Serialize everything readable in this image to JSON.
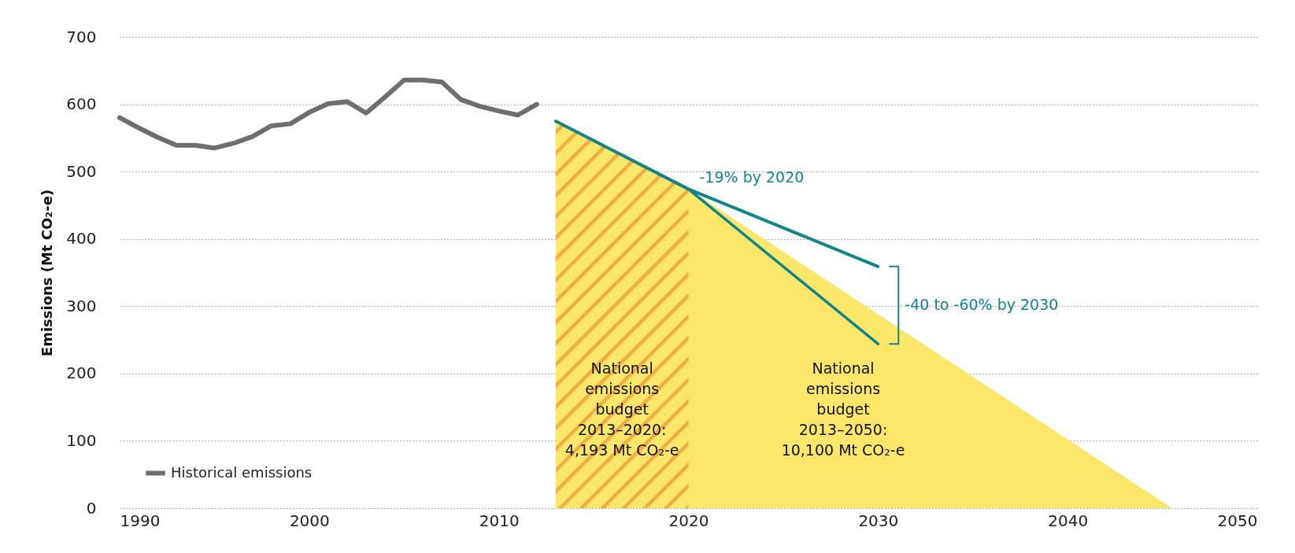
{
  "chart_data": {
    "type": "line",
    "ylabel": "Emissions (Mt CO₂-e)",
    "xlim": [
      1990,
      2050
    ],
    "xticks": [
      1990,
      2000,
      2010,
      2020,
      2030,
      2040,
      2050
    ],
    "ylim": [
      0,
      700
    ],
    "yticks": [
      0,
      100,
      200,
      300,
      400,
      500,
      600,
      700
    ],
    "grid": "y",
    "legend": "bottom left",
    "series": [
      {
        "type": "area",
        "color": "#fde76b",
        "x": [
          2013,
          2020,
          2045.5
        ],
        "values": [
          575,
          474,
          0
        ]
      },
      {
        "type": "area",
        "color": "#f0ad44",
        "x": [
          2013,
          2020
        ],
        "values": [
          575,
          474
        ]
      },
      {
        "name": "Historical emissions",
        "color": "#6d6e71",
        "x": [
          1990,
          1991,
          1992,
          1993,
          1994,
          1995,
          1996,
          1997,
          1998,
          1999,
          2000,
          2001,
          2002,
          2003,
          2004,
          2005,
          2006,
          2007,
          2008,
          2009,
          2010,
          2011,
          2012
        ],
        "values": [
          580,
          565,
          551,
          539,
          539,
          535,
          542,
          552,
          568,
          571,
          588,
          601,
          604,
          587,
          611,
          636,
          636,
          633,
          607,
          597,
          590,
          584,
          600
        ]
      },
      {
        "type": "line",
        "color": "#138586",
        "x": [
          2013,
          2020,
          2030
        ],
        "values": [
          575,
          474,
          359
        ]
      },
      {
        "type": "line",
        "color": "#138586",
        "x": [
          2020,
          2030
        ],
        "values": [
          474,
          244
        ]
      }
    ],
    "annotations": [
      {
        "text": "-19% by 2020",
        "x": 2020,
        "y": 474
      },
      "-40 to -60% by 2030",
      "National\nemissions\nbudget\n2013–2020:\n4,193 Mt CO₂-e",
      "National\nemissions\nbudget\n2013–2050:\n10,100 Mt CO₂-e"
    ]
  }
}
